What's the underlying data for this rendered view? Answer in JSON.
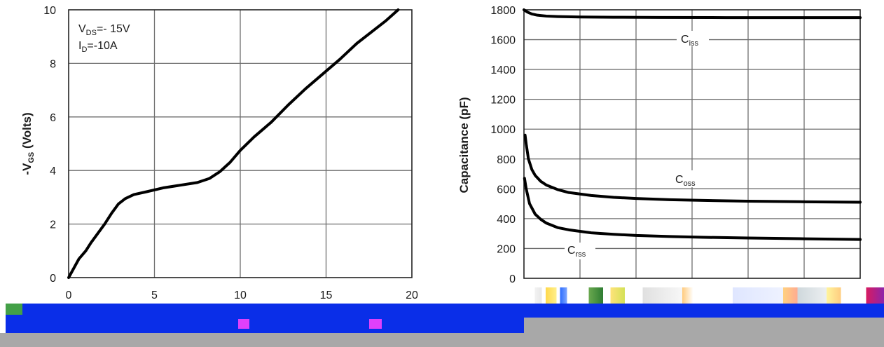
{
  "colors": {
    "curve": "#000000",
    "grid": "#6e6e6e",
    "band_blue": "#0a2ee8",
    "band_gray": "#a8a8a8"
  },
  "chart_data": [
    {
      "type": "line",
      "title": "",
      "xlabel": "",
      "ylabel_prefix": "-V",
      "ylabel_sub": "GS",
      "ylabel_suffix": " (Volts)",
      "xlim": [
        0,
        20
      ],
      "ylim": [
        0,
        10
      ],
      "x_ticks": [
        "0",
        "5",
        "10",
        "15",
        "20"
      ],
      "y_ticks": [
        "0",
        "2",
        "4",
        "6",
        "8",
        "10"
      ],
      "grid": true,
      "annotations": [
        {
          "main": "V",
          "sub": "DS",
          "rest": "=- 15V"
        },
        {
          "main": "I",
          "sub": "D",
          "rest": "=-10A"
        }
      ],
      "series": [
        {
          "x": [
            0,
            0.3,
            0.6,
            1.0,
            1.3,
            1.7,
            2.1,
            2.5,
            2.9,
            3.3,
            3.8,
            4.5,
            5.5,
            6.5,
            7.5,
            8.2,
            8.8,
            9.4,
            10.0,
            10.8,
            11.8,
            12.8,
            13.8,
            14.8,
            15.8,
            16.8,
            17.8,
            18.5,
            19.2
          ],
          "y": [
            0,
            0.35,
            0.7,
            1.0,
            1.3,
            1.65,
            2.0,
            2.4,
            2.75,
            2.95,
            3.1,
            3.2,
            3.35,
            3.45,
            3.55,
            3.7,
            3.95,
            4.3,
            4.75,
            5.25,
            5.8,
            6.45,
            7.05,
            7.6,
            8.15,
            8.75,
            9.25,
            9.6,
            10.0
          ]
        }
      ]
    },
    {
      "type": "line",
      "title": "",
      "xlabel": "",
      "ylabel": "Capacitance (pF)",
      "xlim": [
        0,
        30
      ],
      "ylim": [
        0,
        1800
      ],
      "y_ticks": [
        "0",
        "200",
        "400",
        "600",
        "800",
        "1000",
        "1200",
        "1400",
        "1600",
        "1800"
      ],
      "grid": true,
      "series": [
        {
          "label_main": "C",
          "label_sub": "iss",
          "x": [
            0,
            0.3,
            0.7,
            1.2,
            2,
            3,
            5,
            8,
            12,
            18,
            24,
            30
          ],
          "y": [
            1800,
            1785,
            1772,
            1764,
            1758,
            1755,
            1752,
            1750,
            1749,
            1748,
            1748,
            1748
          ]
        },
        {
          "label_main": "C",
          "label_sub": "oss",
          "x": [
            0.1,
            0.2,
            0.4,
            0.7,
            1.0,
            1.5,
            2,
            3,
            4,
            6,
            8,
            10,
            13,
            16,
            20,
            25,
            30
          ],
          "y": [
            960,
            900,
            800,
            730,
            690,
            650,
            625,
            595,
            575,
            555,
            543,
            535,
            527,
            522,
            517,
            513,
            510
          ]
        },
        {
          "label_main": "C",
          "label_sub": "rss",
          "x": [
            0.05,
            0.2,
            0.5,
            1.0,
            1.5,
            2,
            3,
            4,
            6,
            8,
            10,
            13,
            16,
            20,
            25,
            30
          ],
          "y": [
            670,
            600,
            500,
            430,
            395,
            370,
            340,
            325,
            305,
            295,
            287,
            280,
            275,
            270,
            265,
            260
          ]
        }
      ]
    }
  ]
}
